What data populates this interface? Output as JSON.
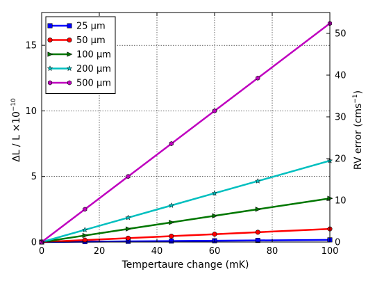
{
  "chart_data": {
    "type": "line",
    "xlabel": "Tempertaure change (mK)",
    "ylabel": "ΔL / L ×10",
    "ylabel_exponent": "−10",
    "y2label": "RV error (cms",
    "y2label_exponent": "−1",
    "xlim": [
      0,
      100
    ],
    "ylim": [
      0,
      17.5
    ],
    "y2lim": [
      0,
      55
    ],
    "xticks": [
      0,
      20,
      40,
      60,
      80,
      100
    ],
    "yticks": [
      0,
      5,
      10,
      15
    ],
    "y2ticks": [
      0,
      10,
      20,
      30,
      40,
      50
    ],
    "grid": true,
    "legend_position": "top-left",
    "x": [
      0,
      15,
      30,
      45,
      60,
      75,
      100
    ],
    "series": [
      {
        "name": "25 µm",
        "color": "#0000ff",
        "marker": "square",
        "values": [
          0,
          0.025,
          0.05,
          0.075,
          0.1,
          0.125,
          0.167
        ]
      },
      {
        "name": "50 µm",
        "color": "#ff0000",
        "marker": "circle",
        "values": [
          0,
          0.15,
          0.3,
          0.45,
          0.6,
          0.75,
          1.0
        ]
      },
      {
        "name": "100 µm",
        "color": "#007700",
        "marker": "triangle-right",
        "values": [
          0,
          0.5,
          1.0,
          1.5,
          2.0,
          2.5,
          3.33
        ]
      },
      {
        "name": "200 µm",
        "color": "#00bfbf",
        "marker": "star",
        "values": [
          0,
          0.93,
          1.86,
          2.79,
          3.72,
          4.65,
          6.2
        ]
      },
      {
        "name": "500 µm",
        "color": "#bf00bf",
        "marker": "hexagon",
        "values": [
          0,
          2.5,
          5.0,
          7.5,
          10.0,
          12.5,
          16.67
        ]
      }
    ]
  }
}
